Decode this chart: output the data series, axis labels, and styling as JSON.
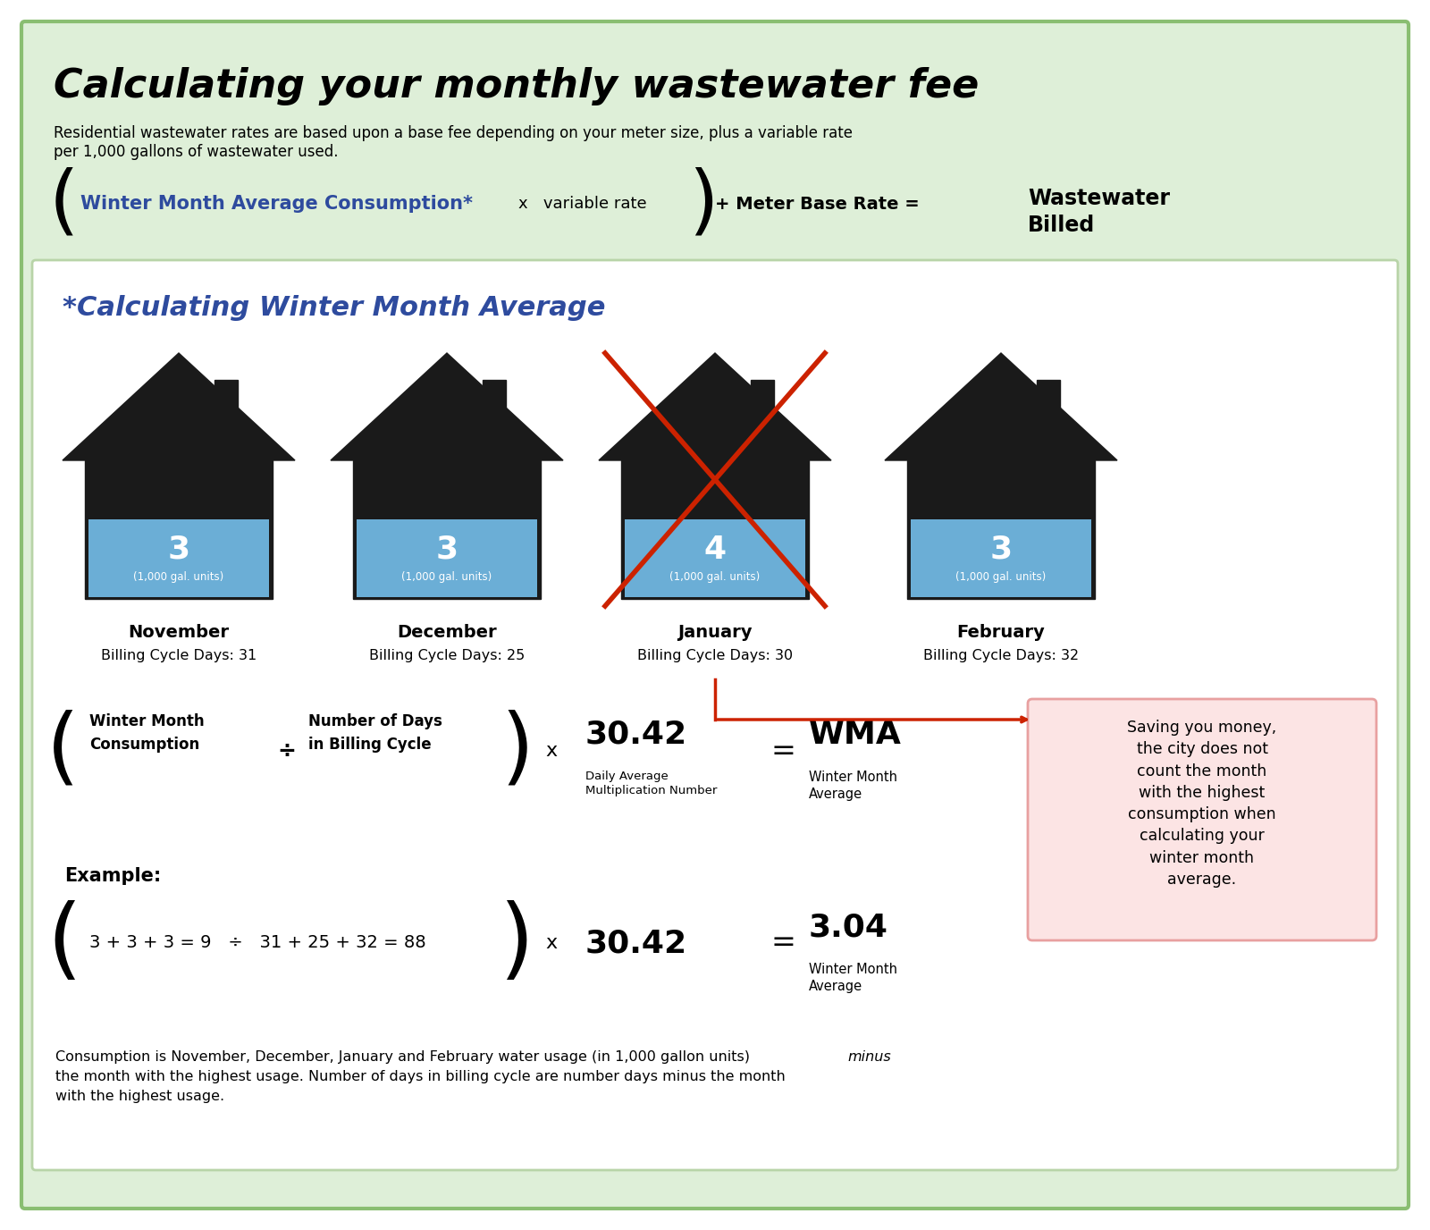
{
  "title": "Calculating your monthly wastewater fee",
  "subtitle": "Residential wastewater rates are based upon a base fee depending on your meter size, plus a variable rate\nper 1,000 gallons of wastewater used.",
  "months": [
    "November",
    "December",
    "January",
    "February"
  ],
  "billing_days": [
    "Billing Cycle Days: 31",
    "Billing Cycle Days: 25",
    "Billing Cycle Days: 30",
    "Billing Cycle Days: 32"
  ],
  "consumption": [
    "3",
    "3",
    "4",
    "3"
  ],
  "units_label": "(1,000 gal. units)",
  "pink_box_text": "Saving you money,\nthe city does not\ncount the month\nwith the highest\nconsumption when\ncalculating your\nwinter month\naverage.",
  "footnote_part1": "Consumption is November, December, January and February water usage (in 1,000 gallon units) ",
  "footnote_italic": "minus",
  "footnote_part2": "\nthe month with the highest usage. Number of days in billing cycle are number days minus the month\nwith the highest usage.",
  "bg_color": "#deefd8",
  "blue_color": "#6baed6",
  "dark_blue_text": "#2e4b9e",
  "pink_box_color": "#fce4e4",
  "house_color": "#1a1a1a",
  "red_cross_color": "#cc2200",
  "arrow_color": "#cc2200",
  "white": "#ffffff",
  "inner_border": "#b8d4a8"
}
